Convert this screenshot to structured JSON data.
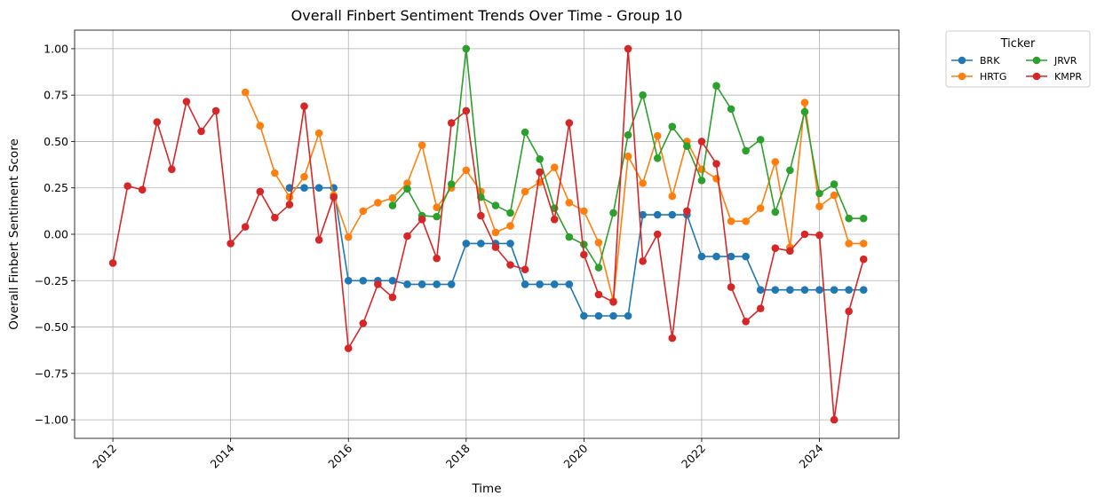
{
  "chart_data": {
    "type": "line",
    "title": "Overall Finbert Sentiment Trends Over Time - Group 10",
    "xlabel": "Time",
    "ylabel": "Overall Finbert Sentiment Score",
    "xlim": [
      2011.35,
      2025.35
    ],
    "ylim": [
      -1.1,
      1.1
    ],
    "xticks": [
      2012,
      2014,
      2016,
      2018,
      2020,
      2022,
      2024
    ],
    "xtick_labels": [
      "2012",
      "2014",
      "2016",
      "2018",
      "2020",
      "2022",
      "2024"
    ],
    "yticks": [
      -1.0,
      -0.75,
      -0.5,
      -0.25,
      0.0,
      0.25,
      0.5,
      0.75,
      1.0
    ],
    "ytick_labels": [
      "−1.00",
      "−0.75",
      "−0.50",
      "−0.25",
      "0.00",
      "0.25",
      "0.50",
      "0.75",
      "1.00"
    ],
    "grid": true,
    "legend": {
      "title": "Ticker",
      "placement": "outside-top-right",
      "columns": 2
    },
    "series": [
      {
        "name": "BRK",
        "color": "#1f77b4",
        "x": [
          2015.0,
          2015.25,
          2015.5,
          2015.75,
          2016.0,
          2016.25,
          2016.5,
          2016.75,
          2017.0,
          2017.25,
          2017.5,
          2017.75,
          2018.0,
          2018.25,
          2018.5,
          2018.75,
          2019.0,
          2019.25,
          2019.5,
          2019.75,
          2020.0,
          2020.25,
          2020.5,
          2020.75,
          2021.0,
          2021.25,
          2021.5,
          2021.75,
          2022.0,
          2022.25,
          2022.5,
          2022.75,
          2023.0,
          2023.25,
          2023.5,
          2023.75,
          2024.0,
          2024.25,
          2024.5,
          2024.75
        ],
        "y": [
          0.25,
          0.25,
          0.25,
          0.25,
          -0.25,
          -0.25,
          -0.25,
          -0.25,
          -0.27,
          -0.27,
          -0.27,
          -0.27,
          -0.05,
          -0.05,
          -0.05,
          -0.05,
          -0.27,
          -0.27,
          -0.27,
          -0.27,
          -0.44,
          -0.44,
          -0.44,
          -0.44,
          0.105,
          0.105,
          0.105,
          0.105,
          -0.12,
          -0.12,
          -0.12,
          -0.12,
          -0.3,
          -0.3,
          -0.3,
          -0.3,
          -0.3,
          -0.3,
          -0.3,
          -0.3
        ]
      },
      {
        "name": "HRTG",
        "color": "#ff7f0e",
        "x": [
          2014.25,
          2014.5,
          2014.75,
          2015.0,
          2015.25,
          2015.5,
          2015.75,
          2016.0,
          2016.25,
          2016.5,
          2016.75,
          2017.0,
          2017.25,
          2017.5,
          2017.75,
          2018.0,
          2018.25,
          2018.5,
          2018.75,
          2019.0,
          2019.25,
          2019.5,
          2019.75,
          2020.0,
          2020.25,
          2020.5,
          2020.75,
          2021.0,
          2021.25,
          2021.5,
          2021.75,
          2022.0,
          2022.25,
          2022.5,
          2022.75,
          2023.0,
          2023.25,
          2023.5,
          2023.75,
          2024.0,
          2024.25,
          2024.5,
          2024.75
        ],
        "y": [
          0.765,
          0.585,
          0.33,
          0.2,
          0.31,
          0.545,
          0.21,
          -0.015,
          0.125,
          0.17,
          0.195,
          0.275,
          0.48,
          0.145,
          0.25,
          0.345,
          0.23,
          0.01,
          0.045,
          0.23,
          0.28,
          0.36,
          0.17,
          0.125,
          -0.045,
          -0.36,
          0.42,
          0.275,
          0.53,
          0.205,
          0.5,
          0.35,
          0.3,
          0.07,
          0.07,
          0.14,
          0.39,
          -0.07,
          0.71,
          0.15,
          0.21,
          -0.05,
          -0.05
        ]
      },
      {
        "name": "JRVR",
        "color": "#2ca02c",
        "x": [
          2016.75,
          2017.0,
          2017.25,
          2017.5,
          2017.75,
          2018.0,
          2018.25,
          2018.5,
          2018.75,
          2019.0,
          2019.25,
          2019.5,
          2019.75,
          2020.0,
          2020.25,
          2020.5,
          2020.75,
          2021.0,
          2021.25,
          2021.5,
          2021.75,
          2022.0,
          2022.25,
          2022.5,
          2022.75,
          2023.0,
          2023.25,
          2023.5,
          2023.75,
          2024.0,
          2024.25,
          2024.5,
          2024.75
        ],
        "y": [
          0.155,
          0.245,
          0.1,
          0.095,
          0.27,
          1.0,
          0.2,
          0.155,
          0.115,
          0.55,
          0.405,
          0.14,
          -0.015,
          -0.055,
          -0.18,
          0.115,
          0.535,
          0.75,
          0.41,
          0.58,
          0.475,
          0.29,
          0.8,
          0.675,
          0.45,
          0.51,
          0.12,
          0.345,
          0.66,
          0.22,
          0.27,
          0.085,
          0.085
        ]
      },
      {
        "name": "KMPR",
        "color": "#d62728",
        "x": [
          2012.0,
          2012.25,
          2012.5,
          2012.75,
          2013.0,
          2013.25,
          2013.5,
          2013.75,
          2014.0,
          2014.25,
          2014.5,
          2014.75,
          2015.0,
          2015.25,
          2015.5,
          2015.75,
          2016.0,
          2016.25,
          2016.5,
          2016.75,
          2017.0,
          2017.25,
          2017.5,
          2017.75,
          2018.0,
          2018.25,
          2018.5,
          2018.75,
          2019.0,
          2019.25,
          2019.5,
          2019.75,
          2020.0,
          2020.25,
          2020.5,
          2020.75,
          2021.0,
          2021.25,
          2021.5,
          2021.75,
          2022.0,
          2022.25,
          2022.5,
          2022.75,
          2023.0,
          2023.25,
          2023.5,
          2023.75,
          2024.0,
          2024.25,
          2024.5,
          2024.75
        ],
        "y": [
          -0.155,
          0.26,
          0.24,
          0.605,
          0.35,
          0.715,
          0.555,
          0.665,
          -0.05,
          0.04,
          0.23,
          0.09,
          0.16,
          0.69,
          -0.03,
          0.2,
          -0.615,
          -0.48,
          -0.27,
          -0.34,
          -0.01,
          0.08,
          -0.13,
          0.6,
          0.665,
          0.1,
          -0.07,
          -0.165,
          -0.19,
          0.335,
          0.08,
          0.6,
          -0.11,
          -0.325,
          -0.365,
          1.0,
          -0.145,
          0.0,
          -0.56,
          0.125,
          0.5,
          0.38,
          -0.285,
          -0.47,
          -0.4,
          -0.075,
          -0.09,
          0.0,
          -0.005,
          -1.0,
          -0.415,
          -0.135
        ]
      }
    ]
  }
}
